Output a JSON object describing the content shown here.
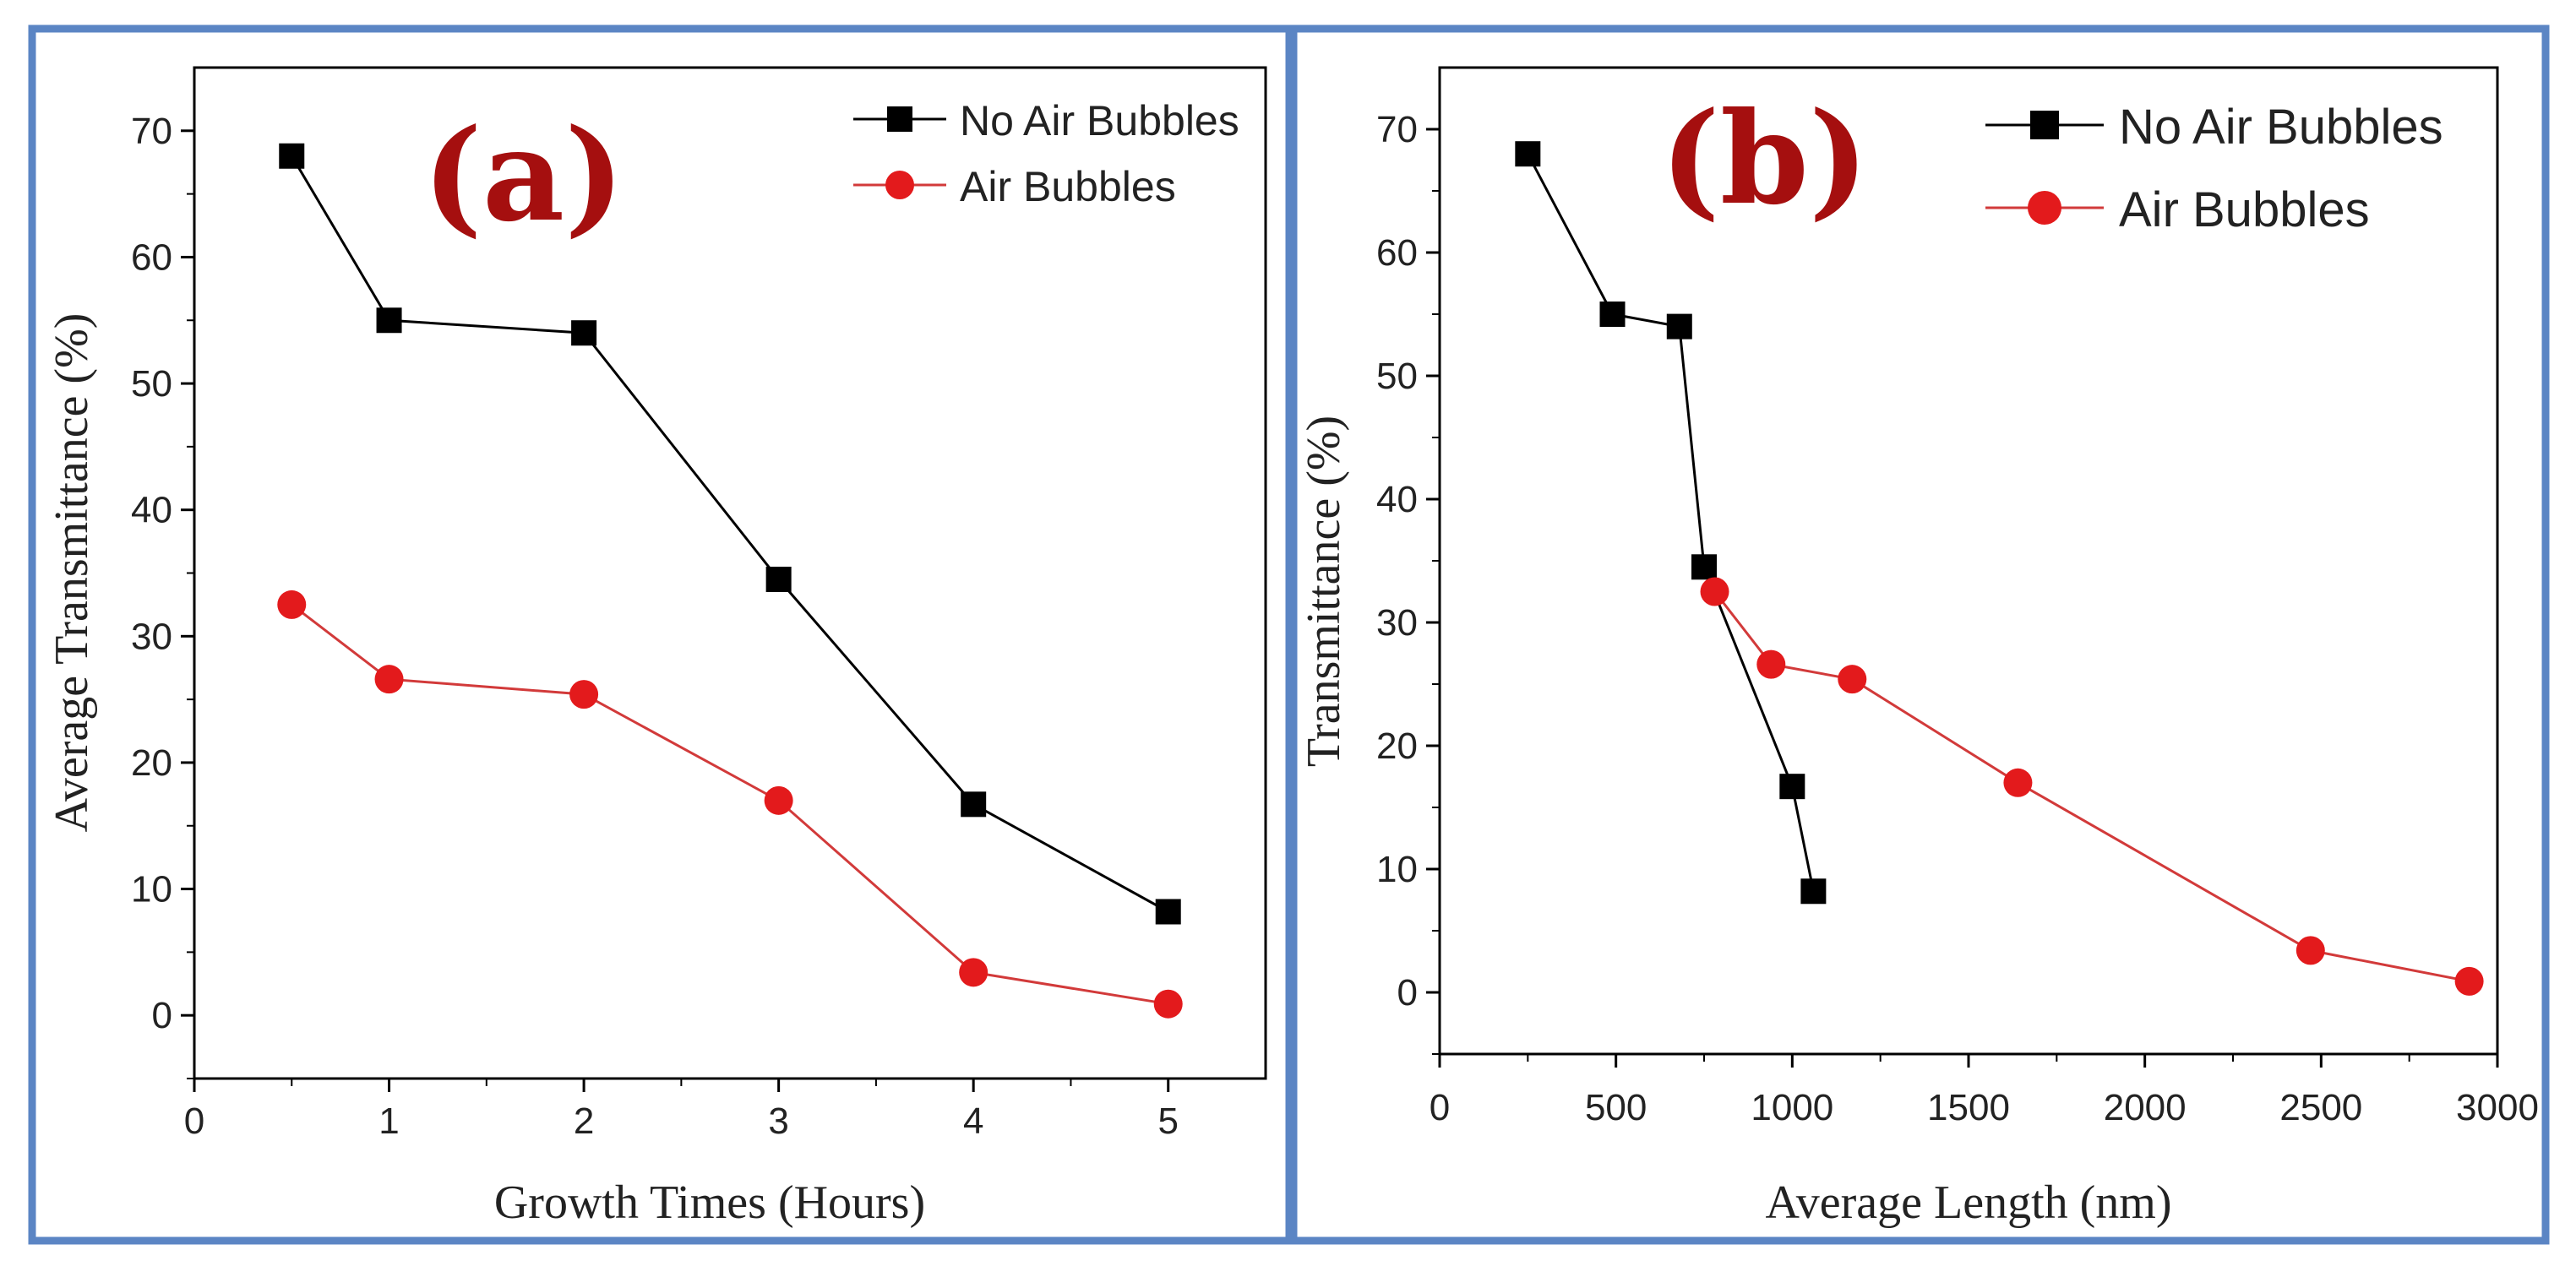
{
  "colors": {
    "frame": "#5b85c4",
    "panel_label": "#a50f0f",
    "series_black": "#000000",
    "series_red": "#e31a1c",
    "line_red": "#d23a3a"
  },
  "chart_data": [
    {
      "type": "line",
      "panel_label": "(a)",
      "title": "",
      "xlabel": "Growth Times (Hours)",
      "ylabel": "Average Transmittance (%)",
      "xlim": [
        0,
        5.5
      ],
      "ylim": [
        -5,
        75
      ],
      "xticks": [
        0,
        1,
        2,
        3,
        4,
        5
      ],
      "yticks": [
        0,
        10,
        20,
        30,
        40,
        50,
        60,
        70
      ],
      "legend_position": "top-right",
      "series": [
        {
          "name": "No Air Bubbles",
          "marker": "square",
          "color": "#000000",
          "x": [
            0.5,
            1,
            2,
            3,
            4,
            5
          ],
          "y": [
            68,
            55,
            54,
            34.5,
            16.7,
            8.2
          ]
        },
        {
          "name": "Air Bubbles",
          "marker": "circle",
          "color": "#e31a1c",
          "x": [
            0.5,
            1,
            2,
            3,
            4,
            5
          ],
          "y": [
            32.5,
            26.6,
            25.4,
            17,
            3.4,
            0.9
          ]
        }
      ]
    },
    {
      "type": "line",
      "panel_label": "(b)",
      "title": "",
      "xlabel": "Average Length (nm)",
      "ylabel": "Transmittance (%)",
      "xlim": [
        0,
        3000
      ],
      "ylim": [
        -5,
        75
      ],
      "xticks": [
        0,
        500,
        1000,
        1500,
        2000,
        2500,
        3000
      ],
      "yticks": [
        0,
        10,
        20,
        30,
        40,
        50,
        60,
        70
      ],
      "legend_position": "top-right",
      "series": [
        {
          "name": "No Air Bubbles",
          "marker": "square",
          "color": "#000000",
          "x": [
            250,
            490,
            680,
            750,
            1000,
            1060
          ],
          "y": [
            68,
            55,
            54,
            34.5,
            16.7,
            8.2
          ]
        },
        {
          "name": "Air Bubbles",
          "marker": "circle",
          "color": "#e31a1c",
          "x": [
            780,
            940,
            1170,
            1640,
            2470,
            2920
          ],
          "y": [
            32.5,
            26.6,
            25.4,
            17,
            3.4,
            0.9
          ]
        }
      ]
    }
  ]
}
